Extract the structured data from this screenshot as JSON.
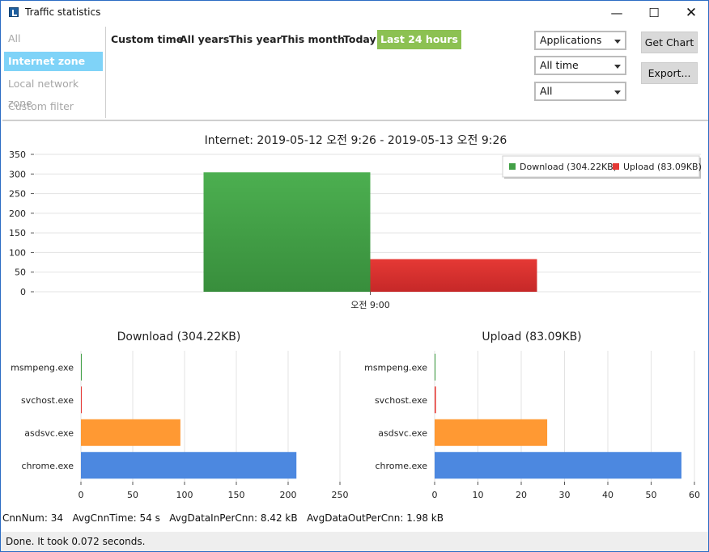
{
  "window": {
    "title": "Traffic statistics",
    "controls": {
      "minimize": "—",
      "maximize": "☐",
      "close": "✕"
    }
  },
  "sidebar": {
    "items": [
      {
        "label": "All",
        "active": false
      },
      {
        "label": "Internet zone",
        "active": true
      },
      {
        "label": "Local network zone",
        "active": false
      },
      {
        "label": "Custom filter",
        "active": false
      }
    ]
  },
  "time_tabs": [
    {
      "label": "Custom time",
      "active": false
    },
    {
      "label": "All years",
      "active": false
    },
    {
      "label": "This year",
      "active": false
    },
    {
      "label": "This month",
      "active": false
    },
    {
      "label": "Today",
      "active": false
    },
    {
      "label": "Last 24 hours",
      "active": true
    }
  ],
  "filters": {
    "group_by": "Applications",
    "range": "All time",
    "scope": "All"
  },
  "buttons": {
    "get_chart": "Get Chart",
    "export": "Export..."
  },
  "colors": {
    "download": "#43a047",
    "upload": "#e53935",
    "orange": "#ff9933",
    "blue": "#4c88e0",
    "active_tab": "#8cc152",
    "active_sidebar": "#7fd3f8"
  },
  "chart_data": [
    {
      "type": "bar",
      "title": "Internet: 2019-05-12 오전 9:26 - 2019-05-13 오전 9:26",
      "categories": [
        "오전 9:00"
      ],
      "series": [
        {
          "name": "Download (304.22KB)",
          "values": [
            304.22
          ],
          "color": "#43a047"
        },
        {
          "name": "Upload (83.09KB)",
          "values": [
            83.09
          ],
          "color": "#e53935"
        }
      ],
      "ylim": [
        0,
        350
      ],
      "yticks": [
        0,
        50,
        100,
        150,
        200,
        250,
        300,
        350
      ],
      "legend": "top-right",
      "grid": true
    },
    {
      "type": "bar",
      "orientation": "horizontal",
      "title": "Download (304.22KB)",
      "categories": [
        "msmpeng.exe",
        "svchost.exe",
        "asdsvc.exe",
        "chrome.exe"
      ],
      "values": [
        0,
        0.5,
        96,
        208
      ],
      "colors": [
        "#43a047",
        "#e53935",
        "#ff9933",
        "#4c88e0"
      ],
      "xlim": [
        0,
        250
      ],
      "xticks": [
        0,
        50,
        100,
        150,
        200,
        250
      ],
      "grid": true
    },
    {
      "type": "bar",
      "orientation": "horizontal",
      "title": "Upload (83.09KB)",
      "categories": [
        "msmpeng.exe",
        "svchost.exe",
        "asdsvc.exe",
        "chrome.exe"
      ],
      "values": [
        0.2,
        0.3,
        26,
        57
      ],
      "colors": [
        "#43a047",
        "#e53935",
        "#ff9933",
        "#4c88e0"
      ],
      "xlim": [
        0,
        60
      ],
      "xticks": [
        0,
        10,
        20,
        30,
        40,
        50,
        60
      ],
      "grid": true
    }
  ],
  "stats": {
    "cnn_num": "CnnNum: 34",
    "avg_cnn_time": "AvgCnnTime: 54 s",
    "avg_in": "AvgDataInPerCnn: 8.42 kB",
    "avg_out": "AvgDataOutPerCnn: 1.98 kB"
  },
  "status": "Done. It took 0.072 seconds."
}
